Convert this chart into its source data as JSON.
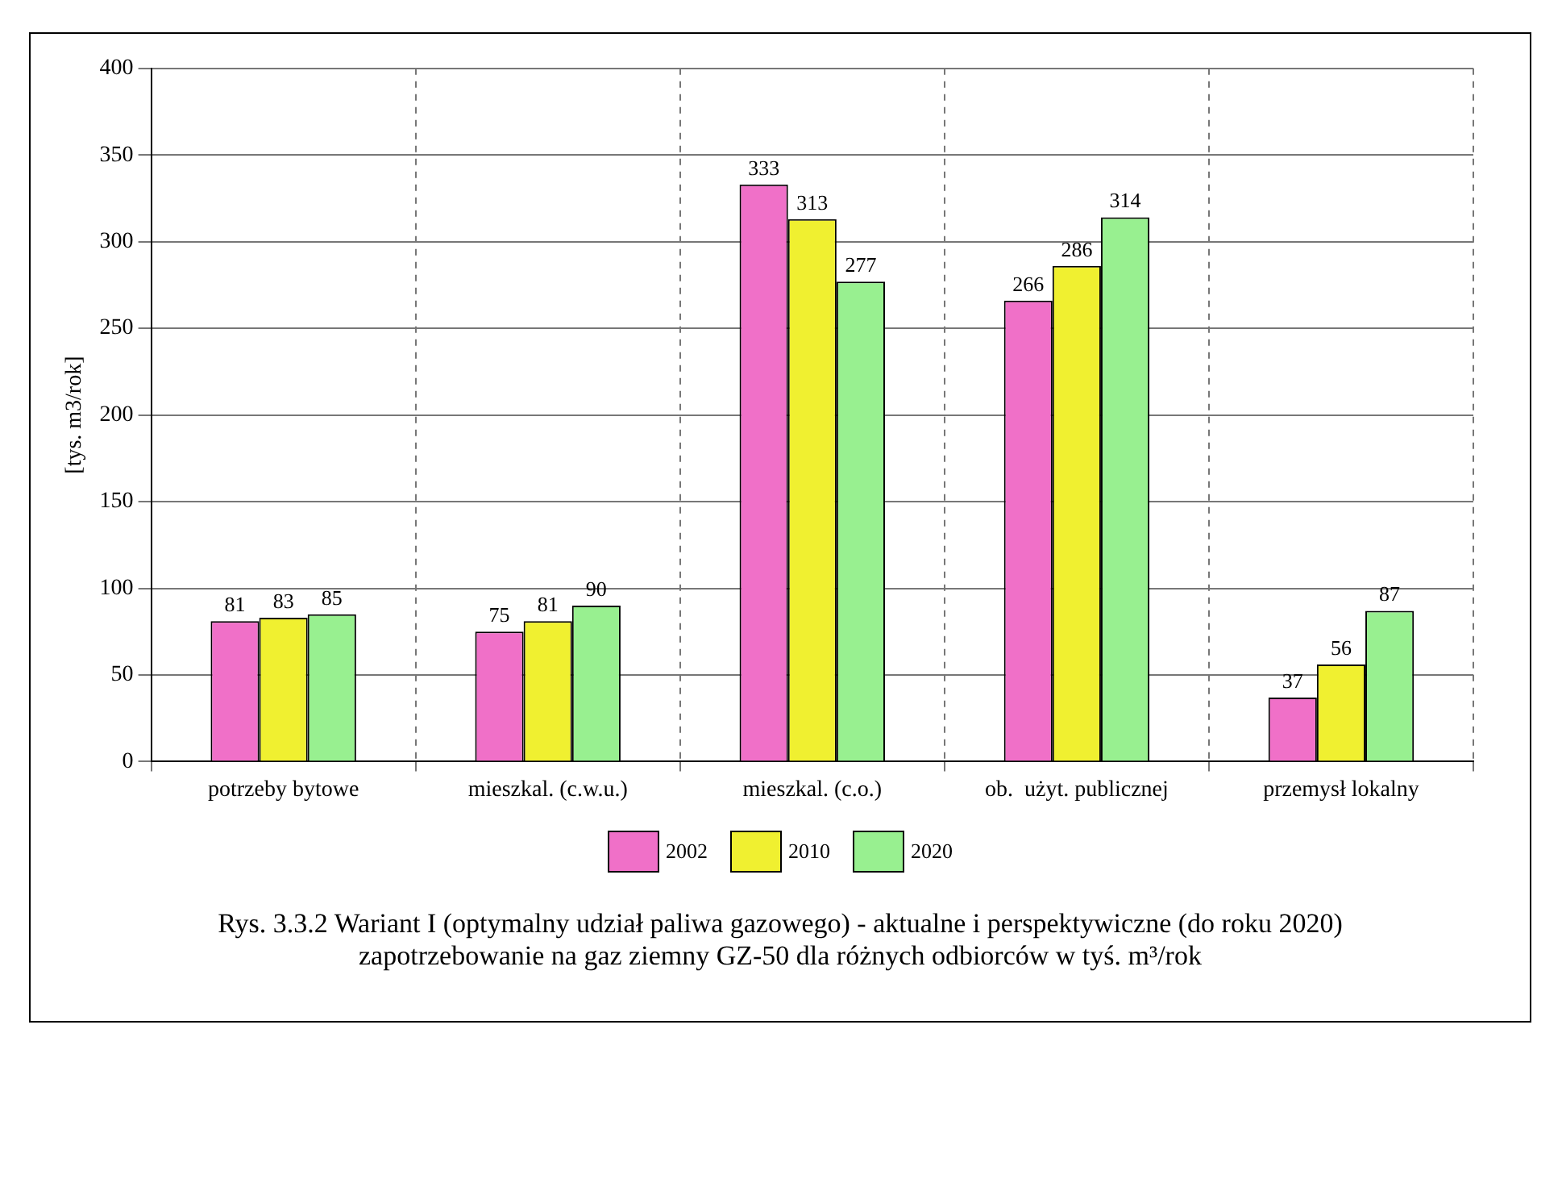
{
  "chart_data": {
    "type": "bar",
    "ylabel": "[tys. m3/rok]",
    "categories": [
      "potrzeby bytowe",
      "mieszkal. (c.w.u.)",
      "mieszkal. (c.o.)",
      "ob.  użyt. publicznej",
      "przemysł lokalny"
    ],
    "series": [
      {
        "name": "2002",
        "color": "#f070c8",
        "values": [
          81,
          75,
          333,
          266,
          37
        ]
      },
      {
        "name": "2010",
        "color": "#f0f030",
        "values": [
          83,
          81,
          313,
          286,
          56
        ]
      },
      {
        "name": "2020",
        "color": "#98f090",
        "values": [
          85,
          90,
          277,
          314,
          87
        ]
      }
    ],
    "ylim": [
      0,
      400
    ],
    "yticks": [
      0,
      50,
      100,
      150,
      200,
      250,
      300,
      350,
      400
    ],
    "grid": true,
    "legend": "bottom",
    "data_labels": true,
    "annotations": [
      "Rys. 3.3.2  Wariant I (optymalny udział paliwa gazowego) - aktualne i perspektywiczne (do roku 2020) zapotrzebowanie na gaz ziemny GZ-50 dla różnych odbiorców w tyś. m³/rok"
    ]
  }
}
